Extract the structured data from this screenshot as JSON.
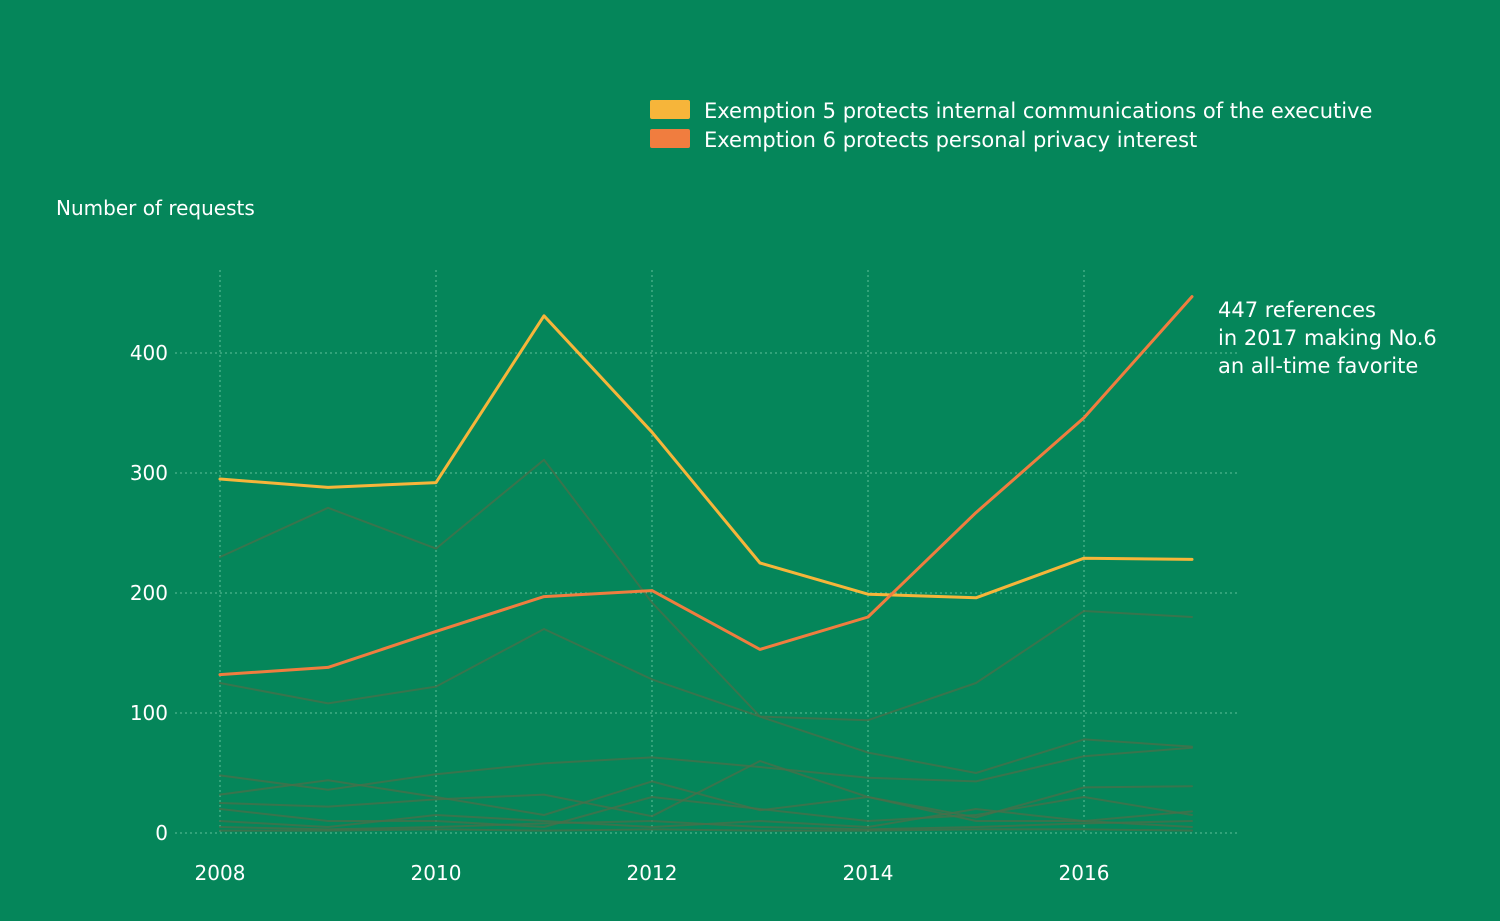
{
  "colors": {
    "background": "#05865a",
    "grid": "#5fc09a",
    "text": "#ffffff",
    "exemption5": "#f6b53a",
    "exemption6": "#f07d3f",
    "other": "#4b6e4a"
  },
  "chart_data": {
    "type": "line",
    "title": "",
    "xlabel": "",
    "ylabel": "Number of requests",
    "x": [
      2008,
      2009,
      2010,
      2011,
      2012,
      2013,
      2014,
      2015,
      2016,
      2017
    ],
    "xlim": [
      2008,
      2017
    ],
    "ylim": [
      0,
      470
    ],
    "x_ticks": [
      "2008",
      "2010",
      "2012",
      "2014",
      "2016"
    ],
    "y_ticks": [
      "0",
      "100",
      "200",
      "300",
      "400"
    ],
    "grid": true,
    "legend_position": "top-right",
    "series": [
      {
        "name": "Exemption 5 protects internal communications of the executive",
        "highlight": true,
        "color": "#f6b53a",
        "values": [
          295,
          288,
          292,
          431,
          334,
          225,
          199,
          196,
          229,
          228
        ]
      },
      {
        "name": "Exemption 6 protects personal privacy interest",
        "highlight": true,
        "color": "#f07d3f",
        "values": [
          132,
          138,
          168,
          197,
          202,
          153,
          180,
          267,
          346,
          447
        ]
      },
      {
        "values": [
          230,
          271,
          237,
          311,
          192,
          97,
          67,
          50,
          78,
          72
        ]
      },
      {
        "values": [
          125,
          108,
          122,
          170,
          128,
          97,
          94,
          125,
          185,
          180
        ]
      },
      {
        "values": [
          48,
          36,
          49,
          58,
          63,
          55,
          46,
          43,
          64,
          71
        ]
      },
      {
        "values": [
          32,
          44,
          30,
          15,
          43,
          19,
          30,
          13,
          38,
          39
        ]
      },
      {
        "values": [
          25,
          22,
          28,
          32,
          14,
          60,
          30,
          10,
          10,
          18
        ]
      },
      {
        "values": [
          20,
          10,
          10,
          5,
          30,
          20,
          10,
          15,
          30,
          15
        ]
      },
      {
        "values": [
          10,
          5,
          15,
          10,
          5,
          10,
          5,
          20,
          10,
          5
        ]
      },
      {
        "values": [
          5,
          3,
          5,
          8,
          10,
          5,
          3,
          5,
          8,
          10
        ]
      },
      {
        "values": [
          2,
          2,
          3,
          2,
          3,
          2,
          2,
          3,
          3,
          2
        ]
      }
    ],
    "annotation": {
      "lines": [
        "447 references",
        "in 2017 making No.6",
        "an all-time favorite"
      ]
    }
  }
}
